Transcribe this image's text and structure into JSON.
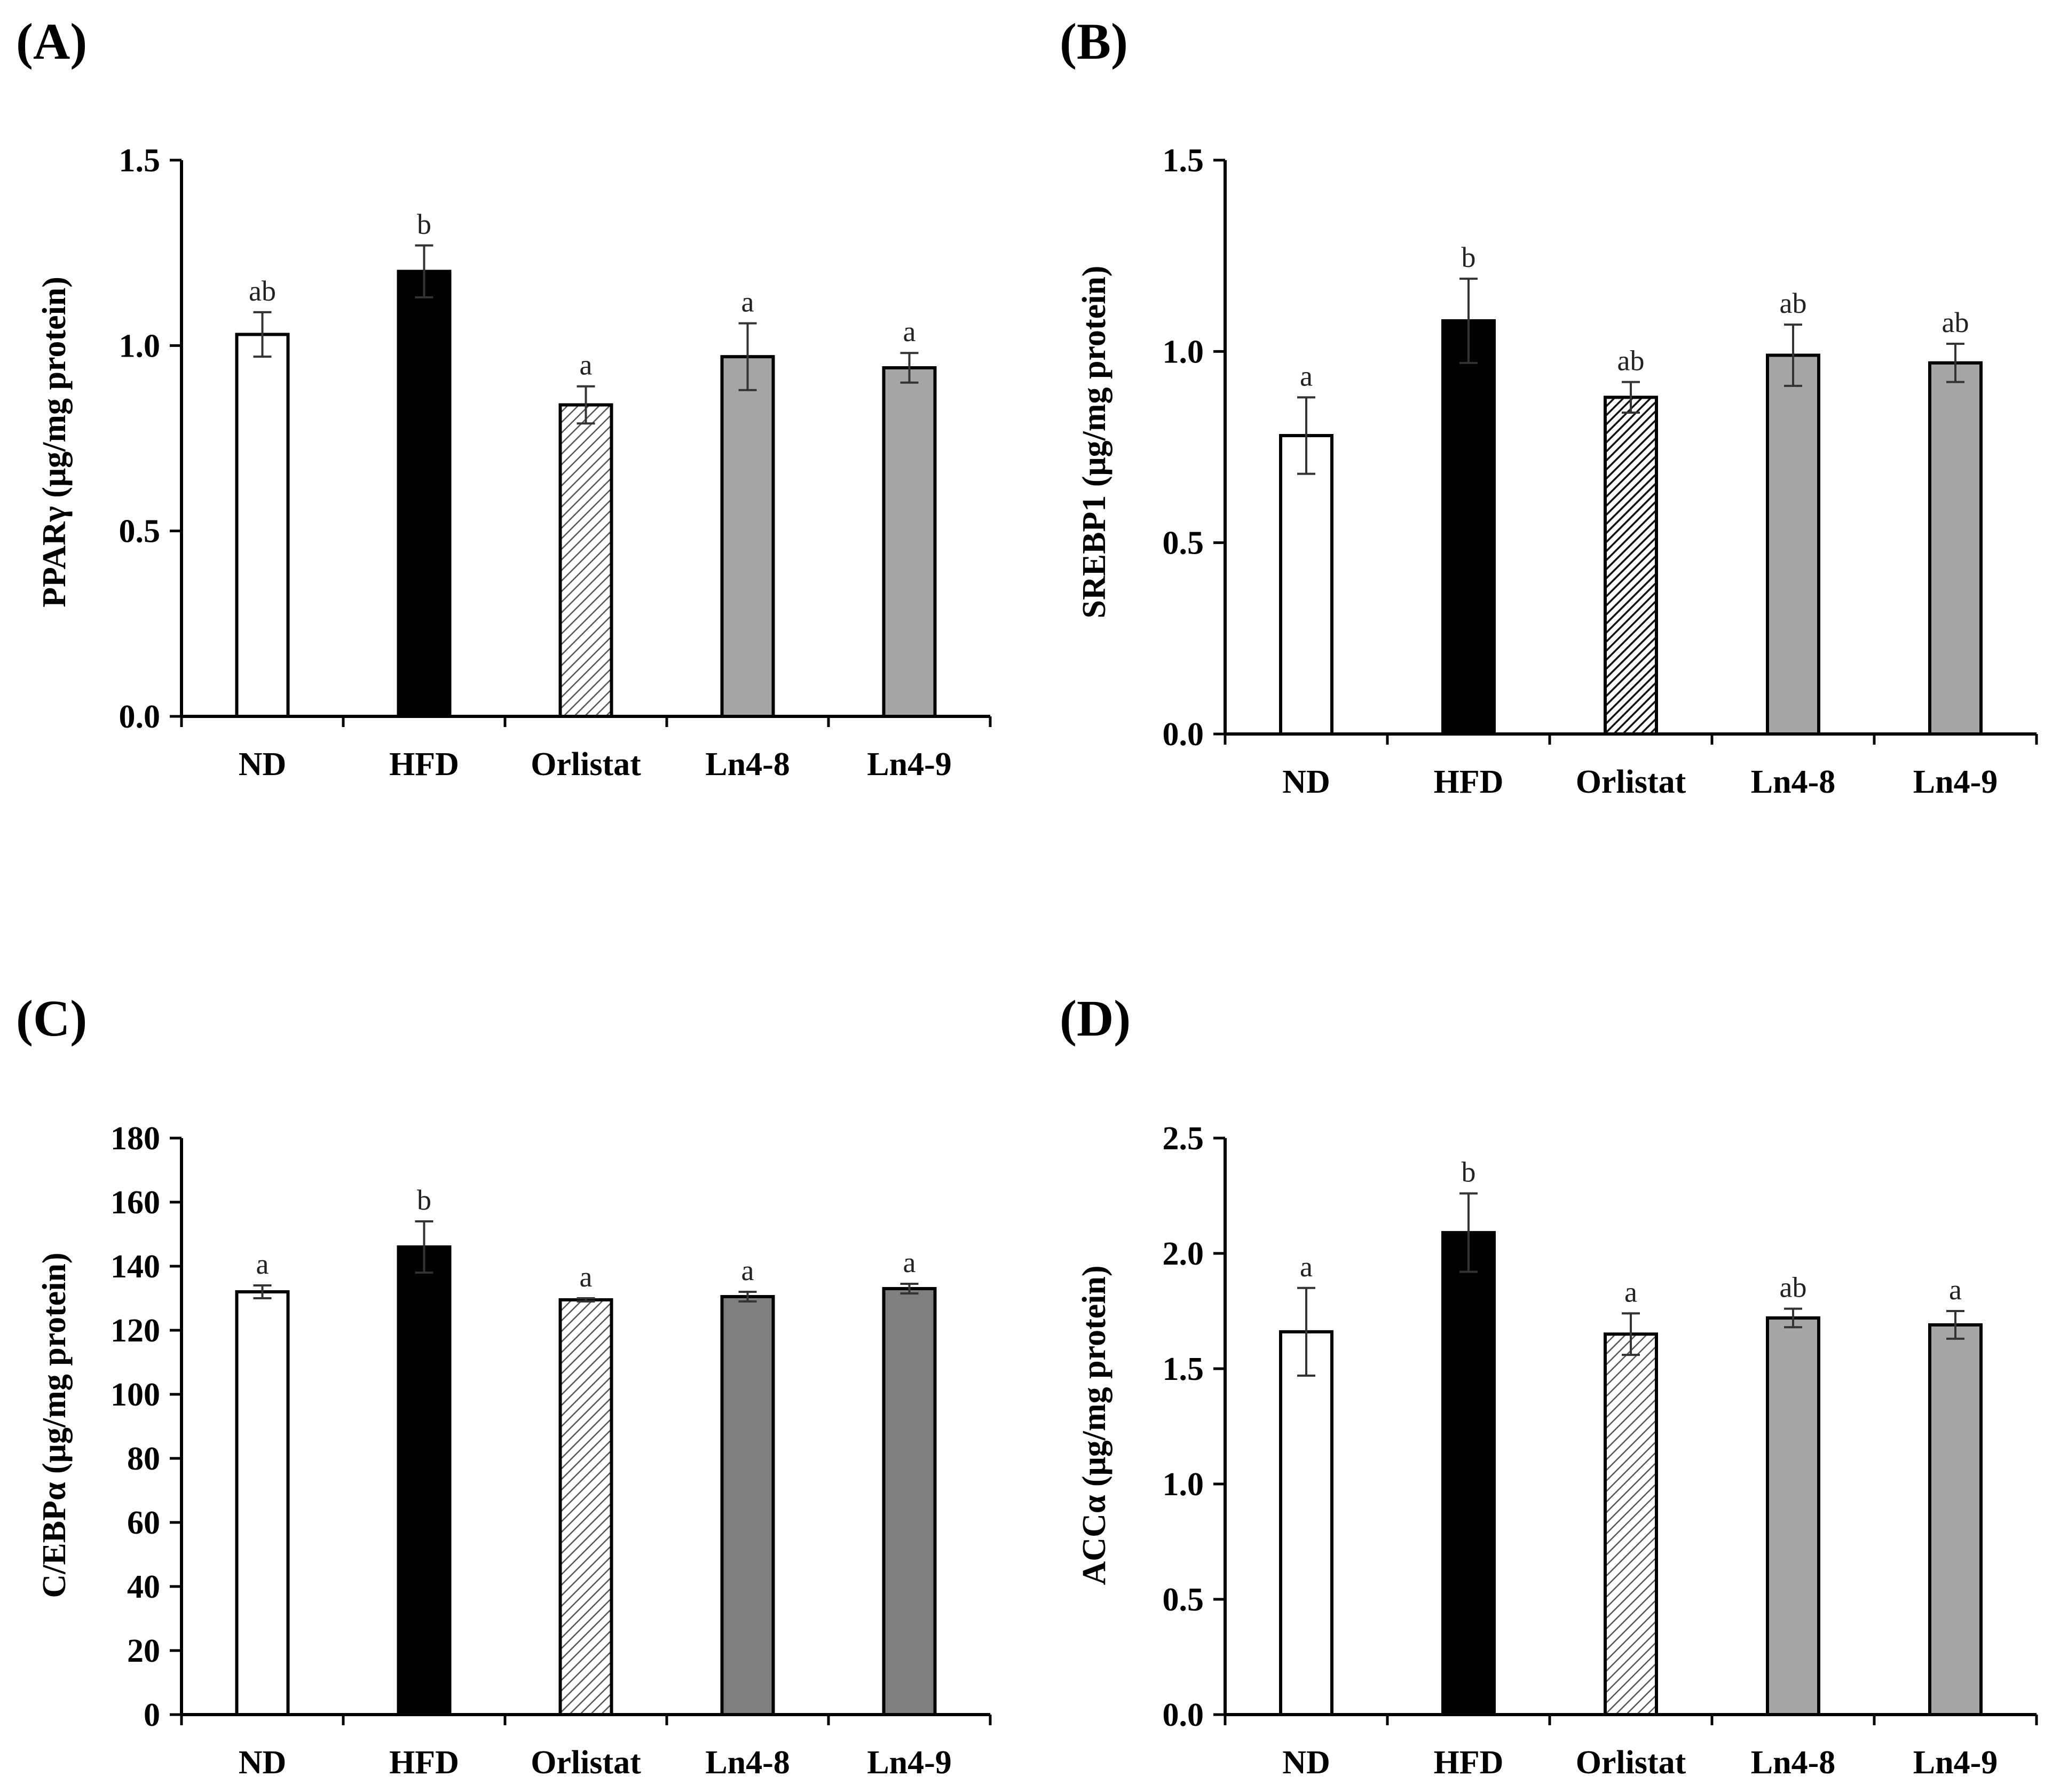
{
  "colors": {
    "white": "#ffffff",
    "black": "#000000",
    "light_gray": "#a6a6a6",
    "dark_gray": "#7f7f7f",
    "hatch": "#000000"
  },
  "chart_data": [
    {
      "panel": "(A)",
      "type": "bar",
      "ylabel": "PPARγ (μg/mg protein)",
      "categories": [
        "ND",
        "HFD",
        "Orlistat",
        "Ln4-8",
        "Ln4-9"
      ],
      "values": [
        1.03,
        1.2,
        0.84,
        0.97,
        0.94
      ],
      "errors": [
        0.06,
        0.07,
        0.05,
        0.09,
        0.04
      ],
      "sig_labels": [
        "ab",
        "b",
        "a",
        "a",
        "a"
      ],
      "fills": [
        "white",
        "black",
        "hatch-light",
        "light_gray",
        "light_gray"
      ],
      "ylim": [
        0,
        1.5
      ],
      "yticks": [
        0.0,
        0.5,
        1.0,
        1.5
      ],
      "ytick_labels": [
        "0.0",
        "0.5",
        "1.0",
        "1.5"
      ]
    },
    {
      "panel": "(B)",
      "type": "bar",
      "ylabel": "SREBP1 (μg/mg protein)",
      "categories": [
        "ND",
        "HFD",
        "Orlistat",
        "Ln4-8",
        "Ln4-9"
      ],
      "values": [
        0.78,
        1.08,
        0.88,
        0.99,
        0.97
      ],
      "errors": [
        0.1,
        0.11,
        0.04,
        0.08,
        0.05
      ],
      "sig_labels": [
        "a",
        "b",
        "ab",
        "ab",
        "ab"
      ],
      "fills": [
        "white",
        "black",
        "hatch-dark",
        "light_gray",
        "light_gray"
      ],
      "ylim": [
        0,
        1.5
      ],
      "yticks": [
        0.0,
        0.5,
        1.0,
        1.5
      ],
      "ytick_labels": [
        "0.0",
        "0.5",
        "1.0",
        "1.5"
      ]
    },
    {
      "panel": "(C)",
      "type": "bar",
      "ylabel": "C/EBPα (μg/mg protein)",
      "categories": [
        "ND",
        "HFD",
        "Orlistat",
        "Ln4-8",
        "Ln4-9"
      ],
      "values": [
        132,
        146,
        129.5,
        130.5,
        133
      ],
      "errors": [
        2,
        8,
        0.5,
        1.5,
        1.5
      ],
      "sig_labels": [
        "a",
        "b",
        "a",
        "a",
        "a"
      ],
      "fills": [
        "white",
        "black",
        "hatch-light",
        "dark_gray",
        "dark_gray"
      ],
      "ylim": [
        0,
        180
      ],
      "yticks": [
        0,
        20,
        40,
        60,
        80,
        100,
        120,
        140,
        160,
        180
      ],
      "ytick_labels": [
        "0",
        "20",
        "40",
        "60",
        "80",
        "100",
        "120",
        "140",
        "160",
        "180"
      ]
    },
    {
      "panel": "(D)",
      "type": "bar",
      "ylabel": "ACCα (μg/mg protein)",
      "categories": [
        "ND",
        "HFD",
        "Orlistat",
        "Ln4-8",
        "Ln4-9"
      ],
      "values": [
        1.66,
        2.09,
        1.65,
        1.72,
        1.69
      ],
      "errors": [
        0.19,
        0.17,
        0.09,
        0.04,
        0.06
      ],
      "sig_labels": [
        "a",
        "b",
        "a",
        "ab",
        "a"
      ],
      "fills": [
        "white",
        "black",
        "hatch-light",
        "light_gray",
        "light_gray"
      ],
      "ylim": [
        0,
        2.5
      ],
      "yticks": [
        0.0,
        0.5,
        1.0,
        1.5,
        2.0,
        2.5
      ],
      "ytick_labels": [
        "0.0",
        "0.5",
        "1.0",
        "1.5",
        "2.0",
        "2.5"
      ]
    }
  ]
}
